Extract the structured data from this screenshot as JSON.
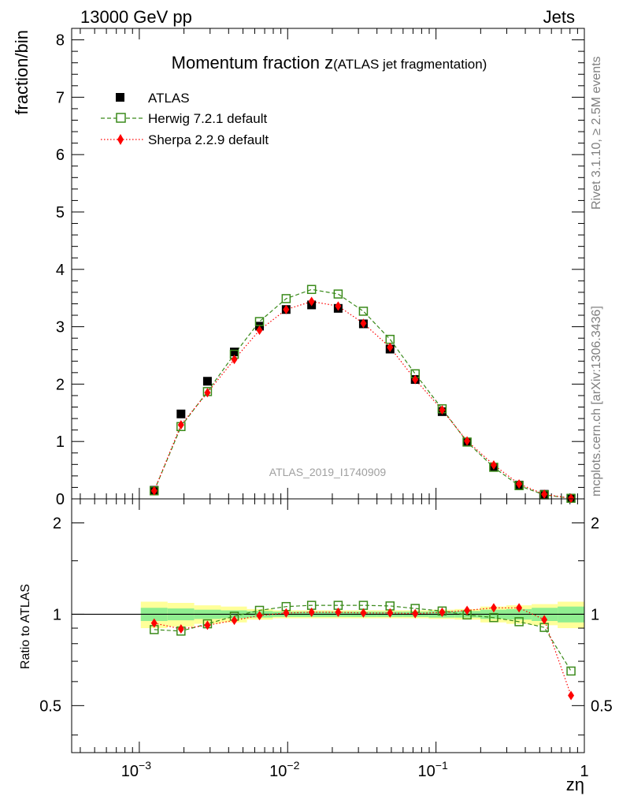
{
  "header": {
    "left": "13000 GeV pp",
    "right": "Jets"
  },
  "side": {
    "top": "Rivet 3.1.10, ≥ 2.5M events",
    "bottom": "mcplots.cern.ch [arXiv:1306.3436]"
  },
  "watermark": "ATLAS_2019_I1740909",
  "colors": {
    "herwig": "#3a8a1a",
    "sherpa": "#ff0000",
    "data": "#000000",
    "band_inner": "#90ee90",
    "band_outer": "#ffff99"
  },
  "chart_data": [
    {
      "type": "scatter",
      "title_main": "Momentum fraction ",
      "title_var": "z",
      "title_sub": "(ATLAS jet fragmentation)",
      "ylabel": "fraction/bin",
      "xscale": "log",
      "xlim": [
        0.00035,
        1
      ],
      "ylim": [
        0,
        8.2
      ],
      "y_ticks": [
        "0",
        "1",
        "2",
        "3",
        "4",
        "5",
        "6",
        "7",
        "8"
      ],
      "legend_position": "top-left",
      "legend": [
        {
          "label": "ATLAS",
          "style": "filled-square"
        },
        {
          "label": "Herwig 7.2.1 default",
          "style": "open-square-dashed"
        },
        {
          "label": "Sherpa 2.2.9 default",
          "style": "diamond-dotted"
        }
      ],
      "x": [
        0.00126,
        0.00191,
        0.00288,
        0.00437,
        0.00646,
        0.00977,
        0.0145,
        0.0219,
        0.0324,
        0.049,
        0.0724,
        0.11,
        0.162,
        0.245,
        0.363,
        0.537,
        0.813
      ],
      "series": [
        {
          "name": "ATLAS",
          "values": [
            0.15,
            1.48,
            2.05,
            2.56,
            3.01,
            3.3,
            3.38,
            3.32,
            3.05,
            2.61,
            2.08,
            1.52,
            0.99,
            0.55,
            0.24,
            0.08,
            0.01
          ]
        },
        {
          "name": "Herwig 7.2.1 default",
          "values": [
            0.14,
            1.26,
            1.87,
            2.52,
            3.09,
            3.49,
            3.65,
            3.57,
            3.27,
            2.78,
            2.18,
            1.57,
            0.99,
            0.55,
            0.23,
            0.07,
            0.01
          ]
        },
        {
          "name": "Sherpa 2.2.9 default",
          "values": [
            0.14,
            1.29,
            1.85,
            2.43,
            2.94,
            3.3,
            3.44,
            3.36,
            3.06,
            2.64,
            2.08,
            1.55,
            1.01,
            0.59,
            0.26,
            0.08,
            0.01
          ]
        }
      ]
    },
    {
      "type": "scatter",
      "ylabel": "Ratio to ATLAS",
      "xlabel": "zη",
      "xscale": "log",
      "xlim": [
        0.00035,
        1
      ],
      "ylim": [
        0.35,
        2.4
      ],
      "yscale": "log",
      "x_ticks": [
        {
          "value": 0.001,
          "base": "10",
          "exp": "−3"
        },
        {
          "value": 0.01,
          "base": "10",
          "exp": "−2"
        },
        {
          "value": 0.1,
          "base": "10",
          "exp": "−1"
        },
        {
          "value": 1,
          "base": "1",
          "exp": ""
        }
      ],
      "y_ticks": [
        {
          "value": 0.5,
          "label": "0.5"
        },
        {
          "value": 1,
          "label": "1"
        },
        {
          "value": 2,
          "label": "2"
        }
      ],
      "x": [
        0.00126,
        0.00191,
        0.00288,
        0.00437,
        0.00646,
        0.00977,
        0.0145,
        0.0219,
        0.0324,
        0.049,
        0.0724,
        0.11,
        0.162,
        0.245,
        0.363,
        0.537,
        0.813
      ],
      "band_inner": [
        0.05,
        0.045,
        0.035,
        0.03,
        0.025,
        0.02,
        0.02,
        0.02,
        0.02,
        0.02,
        0.02,
        0.025,
        0.025,
        0.035,
        0.04,
        0.05,
        0.06
      ],
      "band_outer": [
        0.1,
        0.09,
        0.07,
        0.06,
        0.04,
        0.03,
        0.03,
        0.03,
        0.03,
        0.03,
        0.03,
        0.035,
        0.04,
        0.06,
        0.07,
        0.08,
        0.1
      ],
      "series": [
        {
          "name": "Herwig 7.2.1 default",
          "values": [
            0.89,
            0.88,
            0.93,
            0.985,
            1.03,
            1.06,
            1.07,
            1.07,
            1.07,
            1.065,
            1.045,
            1.025,
            0.995,
            0.975,
            0.945,
            0.905,
            0.65
          ]
        },
        {
          "name": "Sherpa 2.2.9 default",
          "values": [
            0.935,
            0.895,
            0.92,
            0.955,
            0.99,
            1.01,
            1.015,
            1.015,
            1.01,
            1.01,
            1.005,
            1.015,
            1.03,
            1.05,
            1.05,
            0.96,
            0.54
          ]
        }
      ]
    }
  ]
}
